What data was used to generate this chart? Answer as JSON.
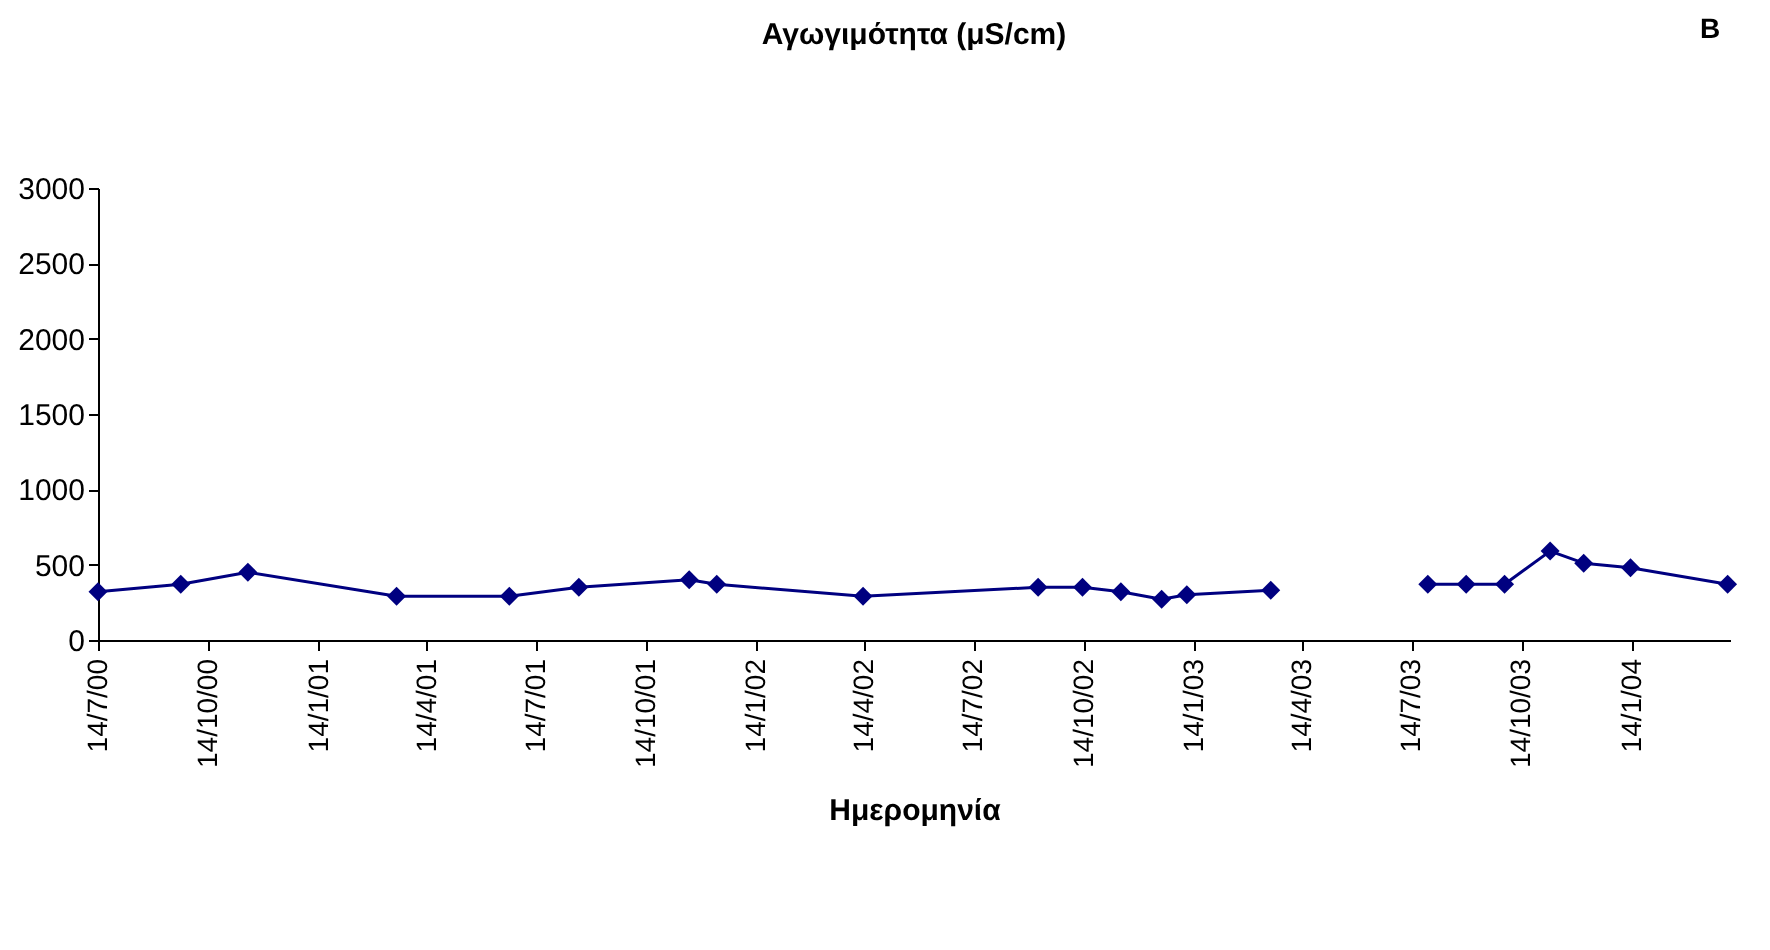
{
  "chart_data": {
    "type": "line",
    "title": "Αγωγιμότητα (μS/cm)",
    "xlabel": "Ημερομηνία",
    "annotations": [
      "B"
    ],
    "x": [
      "2000-07-14",
      "2000-09-21",
      "2000-11-16",
      "2001-03-20",
      "2001-06-22",
      "2001-08-19",
      "2001-11-19",
      "2001-12-12",
      "2002-04-13",
      "2002-09-06",
      "2002-10-13",
      "2002-11-14",
      "2002-12-18",
      "2003-01-08",
      "2003-03-19",
      "2003-05-20",
      "2003-07-28",
      "2003-08-29",
      "2003-09-30",
      "2003-11-07",
      "2003-12-05",
      "2004-01-13",
      "2004-04-03"
    ],
    "series": [
      {
        "color": "#000080",
        "values": [
          320,
          370,
          450,
          290,
          290,
          350,
          400,
          370,
          290,
          350,
          350,
          320,
          270,
          300,
          330,
          null,
          370,
          370,
          370,
          590,
          510,
          480,
          370
        ]
      }
    ],
    "xlim": [
      "2000-07-14",
      "2004-04-05"
    ],
    "xticks": [
      {
        "value": "2000-07-14",
        "label": "14/7/00"
      },
      {
        "value": "2000-10-14",
        "label": "14/10/00"
      },
      {
        "value": "2001-01-14",
        "label": "14/1/01"
      },
      {
        "value": "2001-04-14",
        "label": "14/4/01"
      },
      {
        "value": "2001-07-14",
        "label": "14/7/01"
      },
      {
        "value": "2001-10-14",
        "label": "14/10/01"
      },
      {
        "value": "2002-01-14",
        "label": "14/1/02"
      },
      {
        "value": "2002-04-14",
        "label": "14/4/02"
      },
      {
        "value": "2002-07-14",
        "label": "14/7/02"
      },
      {
        "value": "2002-10-14",
        "label": "14/10/02"
      },
      {
        "value": "2003-01-14",
        "label": "14/1/03"
      },
      {
        "value": "2003-04-14",
        "label": "14/4/03"
      },
      {
        "value": "2003-07-14",
        "label": "14/7/03"
      },
      {
        "value": "2003-10-14",
        "label": "14/10/03"
      },
      {
        "value": "2004-01-14",
        "label": "14/1/04"
      }
    ],
    "ylim": [
      0,
      3000
    ],
    "yticks": [
      0,
      500,
      1000,
      1500,
      2000,
      2500,
      3000
    ],
    "grid": false,
    "legend": false,
    "marker": "diamond",
    "line_style": "solid"
  }
}
